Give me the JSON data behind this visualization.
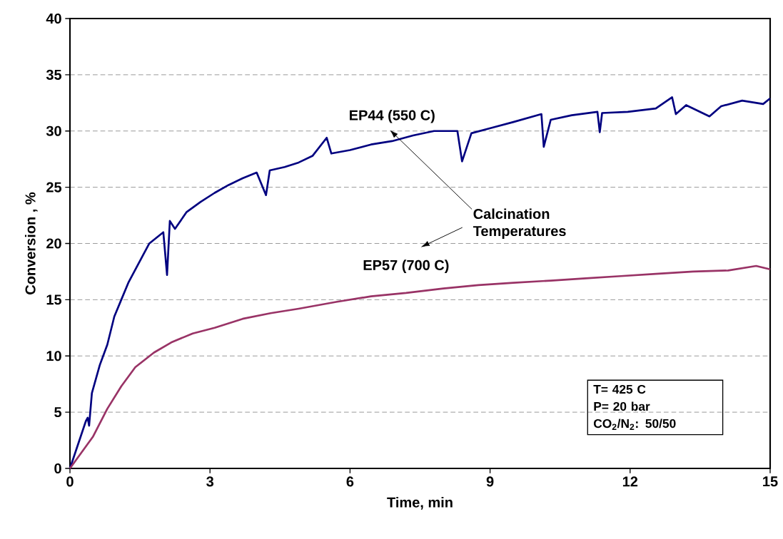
{
  "chart_data": {
    "type": "line",
    "xlabel": "Time, min",
    "ylabel": "Conversion , %",
    "xlim": [
      0,
      15
    ],
    "ylim": [
      0,
      40
    ],
    "xticks": [
      0,
      3,
      6,
      9,
      12,
      15
    ],
    "yticks": [
      0,
      5,
      10,
      15,
      20,
      25,
      30,
      35,
      40
    ],
    "grid": "y",
    "marker": "none",
    "line_style": "solid",
    "annotations": [
      "Calcination Temperatures",
      "T= 425 C",
      "P= 20 bar",
      "CO$_{2}$/N$_{2}$: 50/50"
    ],
    "series": [
      {
        "name": "EP44 (550 C)",
        "color": "#000080",
        "x": [
          0,
          0.34,
          0.38,
          0.41,
          0.47,
          0.64,
          0.8,
          0.95,
          1.1,
          1.25,
          1.48,
          1.7,
          2.0,
          2.08,
          2.14,
          2.25,
          2.5,
          2.8,
          3.1,
          3.4,
          3.7,
          4.0,
          4.2,
          4.28,
          4.6,
          4.9,
          5.2,
          5.5,
          5.6,
          6.0,
          6.45,
          6.9,
          7.35,
          7.8,
          8.3,
          8.4,
          8.6,
          9.05,
          9.5,
          10.1,
          10.15,
          10.3,
          10.75,
          11.3,
          11.35,
          11.4,
          11.95,
          12.55,
          12.9,
          12.98,
          13.2,
          13.7,
          13.95,
          14.4,
          14.85,
          15
        ],
        "values": [
          0,
          4.2,
          4.5,
          3.8,
          6.7,
          9.2,
          11,
          13.5,
          15,
          16.5,
          18.3,
          20,
          21,
          17.2,
          22,
          21.3,
          22.8,
          23.7,
          24.5,
          25.2,
          25.8,
          26.3,
          24.3,
          26.5,
          26.8,
          27.2,
          27.8,
          29.4,
          28,
          28.3,
          28.8,
          29.1,
          29.6,
          30,
          30,
          27.3,
          29.8,
          30.3,
          30.8,
          31.5,
          28.6,
          31,
          31.4,
          31.7,
          29.9,
          31.6,
          31.7,
          32,
          33,
          31.5,
          32.3,
          31.3,
          32.2,
          32.7,
          32.4,
          32.9
        ]
      },
      {
        "name": "EP57 (700 C)",
        "color": "#993366",
        "x": [
          0,
          0.49,
          0.8,
          1.1,
          1.4,
          1.8,
          2.17,
          2.63,
          3.1,
          3.7,
          4.3,
          4.9,
          5.7,
          6.45,
          7.2,
          8.0,
          8.75,
          9.5,
          10.3,
          11.05,
          11.8,
          12.55,
          13.35,
          14.1,
          14.7,
          15
        ],
        "values": [
          0,
          2.8,
          5.3,
          7.3,
          9,
          10.3,
          11.2,
          12,
          12.5,
          13.3,
          13.8,
          14.2,
          14.8,
          15.3,
          15.6,
          16,
          16.3,
          16.5,
          16.7,
          16.9,
          17.1,
          17.3,
          17.5,
          17.6,
          18,
          17.7
        ]
      }
    ]
  }
}
